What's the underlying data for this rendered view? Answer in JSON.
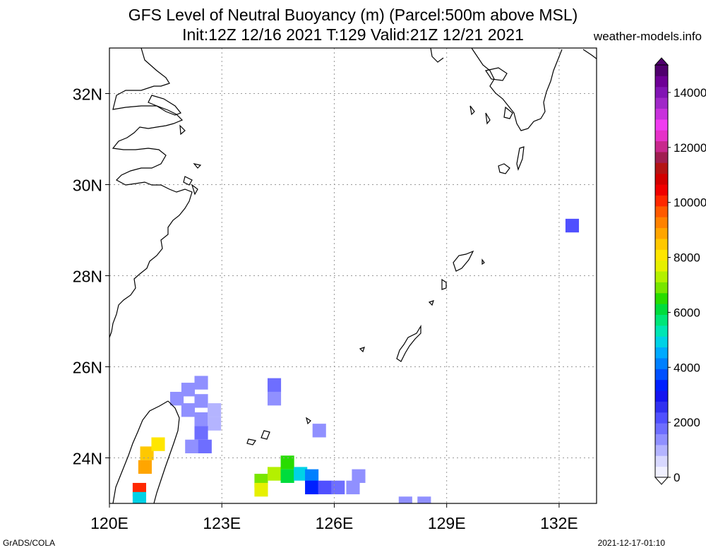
{
  "title_line1": "GFS Level of Neutral Buoyancy (m) (Parcel:500m above MSL)",
  "title_line2": "Init:12Z 12/16 2021 T:129 Valid:21Z 12/21 2021",
  "site": "weather-models.info",
  "footer_left": "GrADS/COLA",
  "footer_right": "2021-12-17-01:10",
  "map": {
    "lon_range": [
      120,
      133
    ],
    "lat_range": [
      23,
      33
    ],
    "lon_ticks": [
      120,
      123,
      126,
      129,
      132
    ],
    "lon_labels": [
      "120E",
      "123E",
      "126E",
      "129E",
      "132E"
    ],
    "lat_ticks": [
      24,
      26,
      28,
      30,
      32
    ],
    "lat_labels": [
      "24N",
      "26N",
      "28N",
      "30N",
      "32N"
    ],
    "grid": true
  },
  "colorbar": {
    "min": 0,
    "max": 15000,
    "tick_values": [
      0,
      2000,
      4000,
      6000,
      8000,
      10000,
      12000,
      14000
    ],
    "tick_labels": [
      "0",
      "2000",
      "4000",
      "6000",
      "8000",
      "10000",
      "12000",
      "14000"
    ],
    "colors": [
      "#f0f0ff",
      "#d8d8ff",
      "#b4b4ff",
      "#9090ff",
      "#6e6eff",
      "#5050ff",
      "#3030f0",
      "#1414f0",
      "#0020ff",
      "#0050ff",
      "#0080ff",
      "#00aaff",
      "#00d2e6",
      "#00e6b4",
      "#00e678",
      "#00dc3c",
      "#28dc00",
      "#78e600",
      "#b4f000",
      "#e6f000",
      "#ffe600",
      "#ffc800",
      "#ffa500",
      "#ff8200",
      "#ff5a00",
      "#ff2800",
      "#f00000",
      "#d20000",
      "#b41414",
      "#a01e50",
      "#c8288c",
      "#e632c8",
      "#f03cf0",
      "#c832dc",
      "#a028c8",
      "#8214b4",
      "#6e0096",
      "#50006e"
    ]
  },
  "field_cells": [
    {
      "lon": 121.8,
      "lat": 25.3,
      "value": 1500
    },
    {
      "lon": 122.1,
      "lat": 25.5,
      "value": 1400
    },
    {
      "lon": 122.45,
      "lat": 25.65,
      "value": 1500
    },
    {
      "lon": 122.45,
      "lat": 25.25,
      "value": 1400
    },
    {
      "lon": 122.1,
      "lat": 25.05,
      "value": 1200
    },
    {
      "lon": 122.45,
      "lat": 24.85,
      "value": 1200
    },
    {
      "lon": 122.8,
      "lat": 25.05,
      "value": 1000
    },
    {
      "lon": 122.8,
      "lat": 24.75,
      "value": 1100
    },
    {
      "lon": 122.45,
      "lat": 24.55,
      "value": 1600
    },
    {
      "lon": 122.2,
      "lat": 24.25,
      "value": 1300
    },
    {
      "lon": 122.55,
      "lat": 24.25,
      "value": 1700
    },
    {
      "lon": 124.4,
      "lat": 25.6,
      "value": 1600
    },
    {
      "lon": 124.4,
      "lat": 25.3,
      "value": 1500
    },
    {
      "lon": 125.6,
      "lat": 24.6,
      "value": 1300
    },
    {
      "lon": 132.35,
      "lat": 29.1,
      "value": 2300
    },
    {
      "lon": 121.0,
      "lat": 24.1,
      "value": 8600
    },
    {
      "lon": 121.3,
      "lat": 24.3,
      "value": 8200
    },
    {
      "lon": 120.95,
      "lat": 23.8,
      "value": 9000
    },
    {
      "lon": 120.8,
      "lat": 23.3,
      "value": 10000
    },
    {
      "lon": 120.8,
      "lat": 23.1,
      "value": 4800
    },
    {
      "lon": 124.05,
      "lat": 23.5,
      "value": 7000
    },
    {
      "lon": 124.05,
      "lat": 23.3,
      "value": 7500
    },
    {
      "lon": 124.4,
      "lat": 23.65,
      "value": 7200
    },
    {
      "lon": 124.75,
      "lat": 23.9,
      "value": 6500
    },
    {
      "lon": 124.75,
      "lat": 23.6,
      "value": 6000
    },
    {
      "lon": 125.1,
      "lat": 23.65,
      "value": 5000
    },
    {
      "lon": 125.4,
      "lat": 23.6,
      "value": 4200
    },
    {
      "lon": 125.4,
      "lat": 23.35,
      "value": 3500
    },
    {
      "lon": 125.75,
      "lat": 23.35,
      "value": 2000
    },
    {
      "lon": 126.1,
      "lat": 23.35,
      "value": 1800
    },
    {
      "lon": 126.5,
      "lat": 23.35,
      "value": 1500
    },
    {
      "lon": 126.65,
      "lat": 23.6,
      "value": 1200
    },
    {
      "lon": 127.9,
      "lat": 23.0,
      "value": 1500
    },
    {
      "lon": 128.4,
      "lat": 23.0,
      "value": 1400
    }
  ]
}
